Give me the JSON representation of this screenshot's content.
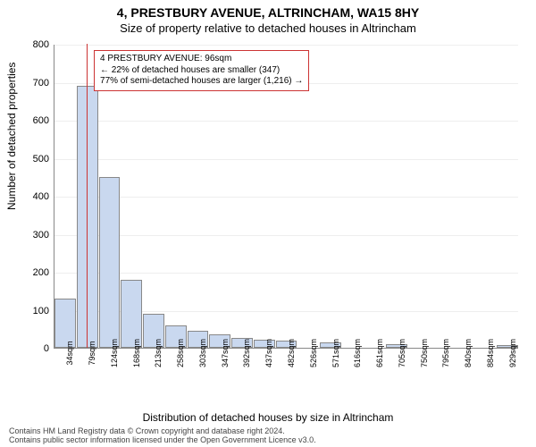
{
  "title_line1": "4, PRESTBURY AVENUE, ALTRINCHAM, WA15 8HY",
  "title_line2": "Size of property relative to detached houses in Altrincham",
  "ylabel": "Number of detached properties",
  "xlabel": "Distribution of detached houses by size in Altrincham",
  "footer_line1": "Contains HM Land Registry data © Crown copyright and database right 2024.",
  "footer_line2": "Contains public sector information licensed under the Open Government Licence v3.0.",
  "chart": {
    "type": "histogram",
    "ylim": [
      0,
      800
    ],
    "ytick_step": 100,
    "bar_fill": "#c9d8ef",
    "bar_border": "#888888",
    "background": "#ffffff",
    "grid_color": "#eeeeee",
    "marker_color": "#cc3333",
    "marker_sqm": 96,
    "categories": [
      "34sqm",
      "79sqm",
      "124sqm",
      "168sqm",
      "213sqm",
      "258sqm",
      "303sqm",
      "347sqm",
      "392sqm",
      "437sqm",
      "482sqm",
      "526sqm",
      "571sqm",
      "616sqm",
      "661sqm",
      "705sqm",
      "750sqm",
      "795sqm",
      "840sqm",
      "884sqm",
      "929sqm"
    ],
    "values": [
      130,
      690,
      450,
      180,
      90,
      60,
      45,
      35,
      25,
      22,
      18,
      0,
      15,
      0,
      0,
      10,
      0,
      0,
      0,
      0,
      8
    ],
    "annotation": {
      "line1": "4 PRESTBURY AVENUE: 96sqm",
      "line2": "← 22% of detached houses are smaller (347)",
      "line3": "77% of semi-detached houses are larger (1,216) →",
      "border_color": "#cc3333"
    }
  }
}
